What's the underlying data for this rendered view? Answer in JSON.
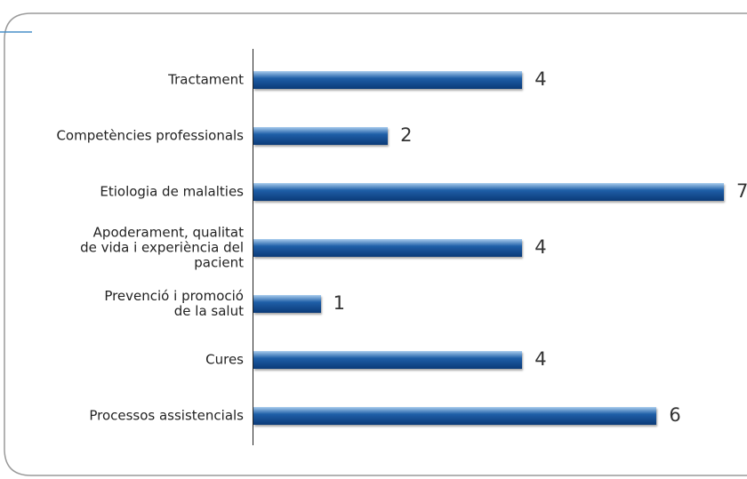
{
  "chart_data": {
    "type": "bar",
    "orientation": "horizontal",
    "categories": [
      "Tractament",
      "Competències professionals",
      "Etiologia de malalties",
      "Apoderament, qualitat\nde vida i experiència del\npacient",
      "Prevenció i promoció\nde la salut",
      "Cures",
      "Processos assistencials"
    ],
    "values": [
      4,
      2,
      7,
      4,
      1,
      4,
      6
    ],
    "color": "#1f5fa8"
  }
}
